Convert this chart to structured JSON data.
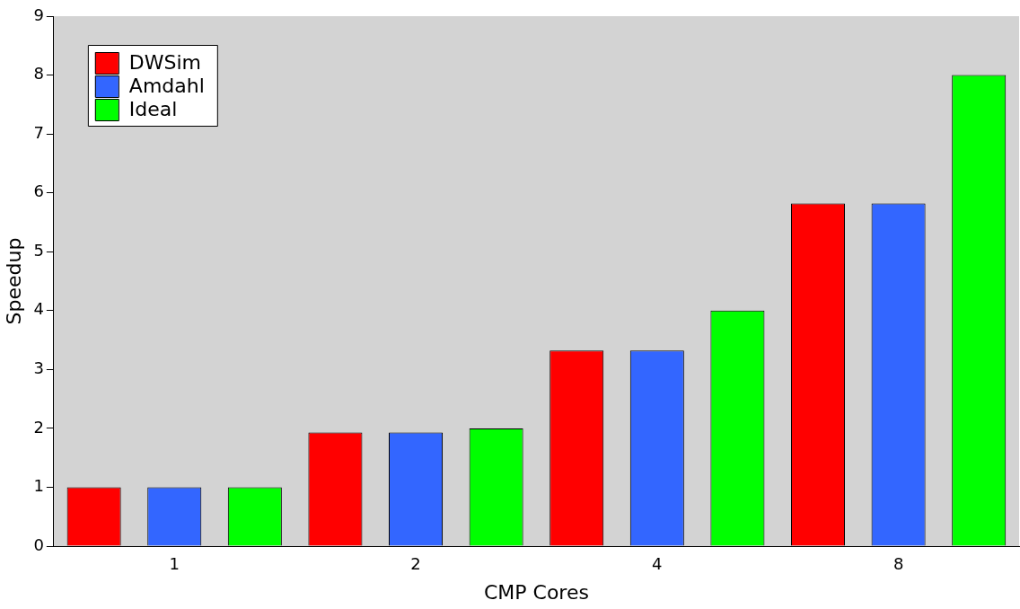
{
  "chart_data": {
    "type": "bar",
    "xlabel": "CMP Cores",
    "ylabel": "Speedup",
    "categories": [
      "1",
      "2",
      "4",
      "8"
    ],
    "series": [
      {
        "name": "DWSim",
        "color": "#ff0000",
        "values": [
          1,
          1.93,
          3.32,
          5.82
        ]
      },
      {
        "name": "Amdahl",
        "color": "#3366ff",
        "values": [
          1,
          1.93,
          3.32,
          5.82
        ]
      },
      {
        "name": "Ideal",
        "color": "#00ff00",
        "values": [
          1,
          2,
          4,
          8
        ]
      }
    ],
    "ylim": [
      0,
      9
    ],
    "yticks": [
      0,
      1,
      2,
      3,
      4,
      5,
      6,
      7,
      8,
      9
    ],
    "grid": false,
    "legend": "top left"
  }
}
